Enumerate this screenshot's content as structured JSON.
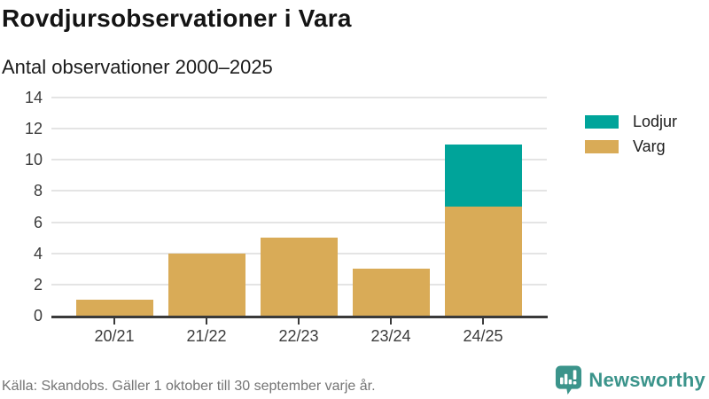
{
  "header": {
    "title": "Rovdjursobservationer i Vara",
    "subtitle": "Antal observationer 2000–2025"
  },
  "chart_data": {
    "type": "bar",
    "stacked": true,
    "title": "Rovdjursobservationer i Vara",
    "subtitle": "Antal observationer 2000–2025",
    "categories": [
      "20/21",
      "21/22",
      "22/23",
      "23/24",
      "24/25"
    ],
    "series": [
      {
        "name": "Lodjur",
        "color": "#00a49a",
        "values": [
          0,
          0,
          0,
          0,
          4
        ]
      },
      {
        "name": "Varg",
        "color": "#d9ab57",
        "values": [
          1,
          4,
          5,
          3,
          7
        ]
      }
    ],
    "xlabel": "",
    "ylabel": "",
    "ylim": [
      0,
      14
    ],
    "yticks": [
      0,
      2,
      4,
      6,
      8,
      10,
      12,
      14
    ],
    "grid": "horizontal",
    "legend_position": "right",
    "totals": [
      1,
      4,
      5,
      3,
      11
    ]
  },
  "footer": {
    "source": "Källa: Skandobs. Gäller 1 oktober till 30 september varje år.",
    "brand_name": "Newsworthy"
  },
  "colors": {
    "lodjur": "#00a49a",
    "varg": "#d9ab57",
    "brand_teal": "#3b948b",
    "axis": "#3a3a3a",
    "gridline": "#e4e4e4"
  }
}
